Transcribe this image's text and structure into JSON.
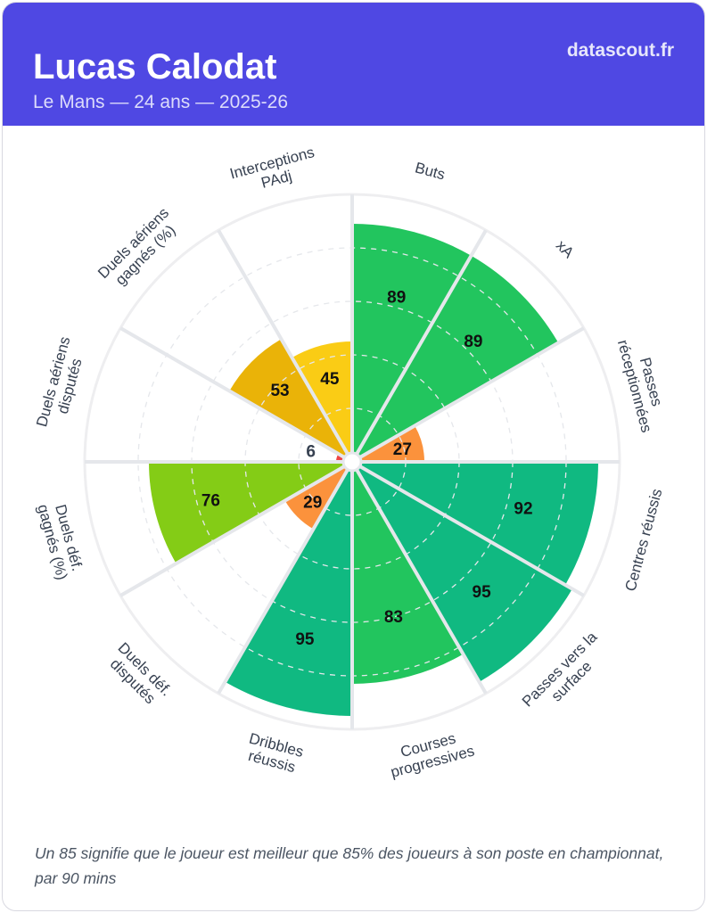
{
  "header": {
    "player_name": "Lucas Calodat",
    "subtitle": "Le Mans — 24 ans — 2025-26",
    "brand": "datascout.fr"
  },
  "chart_data": {
    "type": "pie",
    "subtype": "pizza-percentile",
    "range": [
      0,
      100
    ],
    "gridlines": [
      20,
      40,
      60,
      80,
      100
    ],
    "slices": [
      {
        "label": [
          "Buts"
        ],
        "value": 89,
        "color": "#22c55e"
      },
      {
        "label": [
          "xA"
        ],
        "value": 89,
        "color": "#22c55e"
      },
      {
        "label": [
          "Passes",
          "réceptionnées"
        ],
        "value": 27,
        "color": "#fb923c"
      },
      {
        "label": [
          "Centres réussis"
        ],
        "value": 92,
        "color": "#10b981"
      },
      {
        "label": [
          "Passes vers la",
          "surface"
        ],
        "value": 95,
        "color": "#10b981"
      },
      {
        "label": [
          "Courses",
          "progressives"
        ],
        "value": 83,
        "color": "#22c55e"
      },
      {
        "label": [
          "Dribbles",
          "réussis"
        ],
        "value": 95,
        "color": "#10b981"
      },
      {
        "label": [
          "Duels déf.",
          "disputés"
        ],
        "value": 29,
        "color": "#fb923c"
      },
      {
        "label": [
          "Duels déf.",
          "gagnés (%)"
        ],
        "value": 76,
        "color": "#84cc16"
      },
      {
        "label": [
          "Duels aériens",
          "disputés"
        ],
        "value": 6,
        "color": "#ef4444"
      },
      {
        "label": [
          "Duels aériens",
          "gagnés (%)"
        ],
        "value": 53,
        "color": "#eab308"
      },
      {
        "label": [
          "Interceptions",
          "PAdj"
        ],
        "value": 45,
        "color": "#facc15"
      }
    ]
  },
  "footer": {
    "note": "Un 85 signifie que le joueur est meilleur que 85% des joueurs à son poste en championnat, par 90 mins"
  }
}
